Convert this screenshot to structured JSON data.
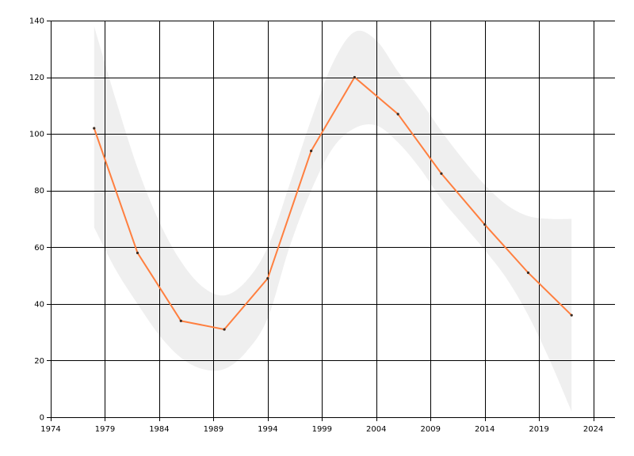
{
  "chart_data": {
    "type": "line",
    "title": "",
    "xlabel": "",
    "ylabel": "",
    "xlim": [
      1974,
      2026
    ],
    "ylim": [
      0,
      140
    ],
    "x_ticks": [
      1974,
      1979,
      1984,
      1989,
      1994,
      1999,
      2004,
      2009,
      2014,
      2019,
      2024
    ],
    "y_ticks": [
      0,
      20,
      40,
      60,
      80,
      100,
      120,
      140
    ],
    "grid": true,
    "legend": "none",
    "colors": {
      "line": "#ff7f3f",
      "band": "#efefef",
      "grid": "#000000"
    },
    "series": [
      {
        "x": [
          1978,
          1982,
          1986,
          1990,
          1994,
          1998,
          2002,
          2006,
          2010,
          2014,
          2018,
          2022
        ],
        "y": [
          102,
          58,
          34,
          31,
          49,
          94,
          120,
          107,
          86,
          68,
          51,
          36
        ]
      }
    ],
    "confidence_band": {
      "x": [
        1978,
        1980,
        1982,
        1984,
        1986,
        1988,
        1990,
        1992,
        1994,
        1996,
        1998,
        2000,
        2002,
        2004,
        2006,
        2008,
        2010,
        2012,
        2014,
        2016,
        2018,
        2020,
        2022
      ],
      "upper": [
        138,
        112,
        88,
        69,
        55,
        46,
        43,
        48,
        60,
        82,
        105,
        125,
        136,
        133,
        122,
        112,
        101,
        91,
        82,
        75,
        71,
        70,
        70
      ],
      "lower": [
        67,
        52,
        40,
        29,
        21,
        17,
        17,
        23,
        35,
        60,
        80,
        95,
        102,
        103,
        97,
        88,
        77,
        68,
        59,
        49,
        36,
        20,
        2
      ]
    }
  }
}
